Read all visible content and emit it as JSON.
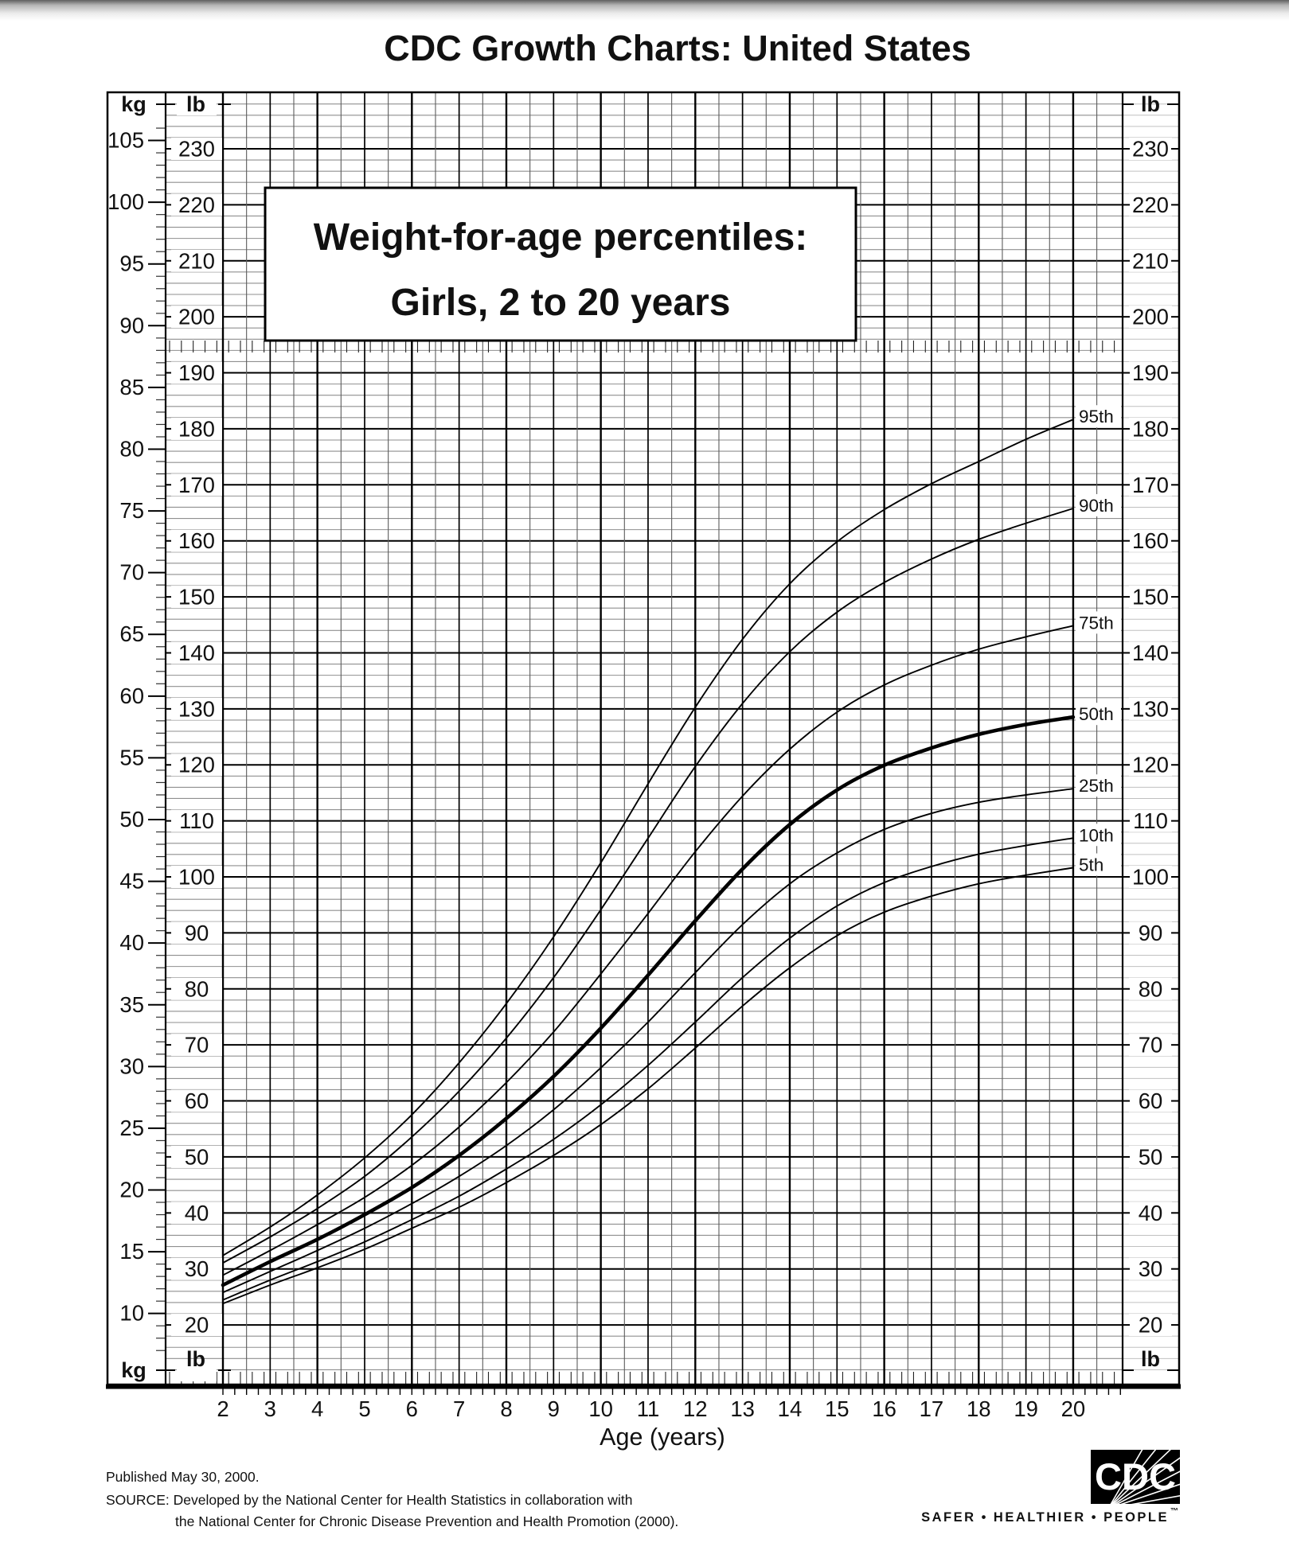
{
  "page": {
    "title": "CDC Growth Charts: United States"
  },
  "chart_data": {
    "type": "line",
    "title": "Weight-for-age percentiles:",
    "subtitle": "Girls, 2 to 20 years",
    "xlabel": "Age (years)",
    "x": [
      2,
      3,
      4,
      5,
      6,
      7,
      8,
      9,
      10,
      11,
      12,
      13,
      14,
      15,
      16,
      17,
      18,
      19,
      20
    ],
    "series": [
      {
        "name": "5th",
        "values_kg": [
          10.8,
          12.3,
          13.7,
          15.2,
          16.9,
          18.6,
          20.6,
          22.8,
          25.3,
          28.2,
          31.5,
          34.9,
          38.0,
          40.6,
          42.5,
          43.8,
          44.8,
          45.5,
          46.1
        ]
      },
      {
        "name": "10th",
        "values_kg": [
          11.1,
          12.7,
          14.2,
          15.8,
          17.6,
          19.5,
          21.7,
          24.1,
          26.9,
          30.1,
          33.6,
          37.2,
          40.4,
          43.0,
          44.9,
          46.2,
          47.2,
          47.9,
          48.5
        ]
      },
      {
        "name": "25th",
        "values_kg": [
          11.7,
          13.4,
          15.1,
          16.9,
          18.9,
          21.1,
          23.6,
          26.5,
          29.9,
          33.6,
          37.6,
          41.5,
          44.8,
          47.3,
          49.2,
          50.5,
          51.4,
          52.0,
          52.5
        ]
      },
      {
        "name": "50th",
        "values_kg": [
          12.3,
          14.2,
          16.0,
          18.0,
          20.2,
          22.8,
          25.8,
          29.2,
          33.1,
          37.4,
          41.8,
          46.0,
          49.6,
          52.4,
          54.4,
          55.8,
          56.9,
          57.7,
          58.3
        ],
        "emphasis": true
      },
      {
        "name": "75th",
        "values_kg": [
          13.1,
          15.1,
          17.2,
          19.4,
          22.0,
          25.1,
          28.7,
          32.8,
          37.5,
          42.4,
          47.4,
          51.9,
          55.7,
          58.7,
          60.9,
          62.5,
          63.8,
          64.8,
          65.7
        ]
      },
      {
        "name": "90th",
        "values_kg": [
          14.1,
          16.2,
          18.5,
          21.1,
          24.3,
          28.0,
          32.3,
          37.2,
          42.7,
          48.5,
          54.3,
          59.4,
          63.6,
          66.8,
          69.2,
          71.1,
          72.7,
          74.0,
          75.2
        ]
      },
      {
        "name": "95th",
        "values_kg": [
          14.7,
          17.0,
          19.6,
          22.6,
          26.1,
          30.3,
          35.1,
          40.5,
          46.5,
          52.9,
          59.1,
          64.6,
          69.1,
          72.5,
          75.1,
          77.2,
          79.0,
          80.8,
          82.4
        ]
      }
    ],
    "percentile_label_order_top_to_bottom": [
      "95th",
      "90th",
      "75th",
      "50th",
      "25th",
      "10th",
      "5th"
    ],
    "axes": {
      "kg_unit": "kg",
      "lb_unit": "lb",
      "kg_tick_labels": [
        105,
        100,
        95,
        90,
        85,
        80,
        75,
        70,
        65,
        60,
        55,
        50,
        45,
        40,
        35,
        30,
        25,
        20,
        15,
        10
      ],
      "lb_tick_labels": [
        230,
        220,
        210,
        200,
        190,
        180,
        170,
        160,
        150,
        140,
        130,
        120,
        110,
        100,
        90,
        80,
        70,
        60,
        50,
        40,
        30,
        20
      ],
      "age_tick_labels": [
        2,
        3,
        4,
        5,
        6,
        7,
        8,
        9,
        10,
        11,
        12,
        13,
        14,
        15,
        16,
        17,
        18,
        19,
        20
      ],
      "lb_range_plotted": [
        10,
        240
      ],
      "age_range_plotted": [
        2,
        21
      ],
      "kg_per_lb": 0.45359,
      "grid": true,
      "minor_h_step_lb": 2,
      "major_h_step_lb": 10,
      "minor_v_step_years": 0.5,
      "major_v_step_years": 1
    }
  },
  "footer": {
    "published": "Published May 30, 2000.",
    "source_line1": "SOURCE: Developed by the National Center for Health Statistics in collaboration with",
    "source_line2": "the National Center for Chronic Disease Prevention and Health Promotion (2000)."
  },
  "logo": {
    "text": "CDC",
    "tagline": "SAFER • HEALTHIER • PEOPLE",
    "tm": "™"
  }
}
